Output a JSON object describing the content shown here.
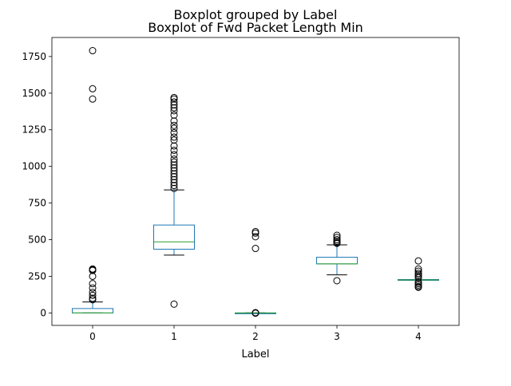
{
  "chart_data": {
    "type": "boxplot",
    "suptitle": "Boxplot grouped by Label",
    "title": "Boxplot of Fwd Packet Length Min",
    "xlabel": "Label",
    "ylabel": "",
    "categories": [
      "0",
      "1",
      "2",
      "3",
      "4"
    ],
    "ylim": [
      -85,
      1880
    ],
    "yticks": [
      0,
      250,
      500,
      750,
      1000,
      1250,
      1500,
      1750
    ],
    "grid": false,
    "colors": {
      "box": "#1f77b4",
      "median": "#2ca02c",
      "whisker": "#1f77b4",
      "cap": "#000000",
      "flier": "#000000"
    },
    "boxes": [
      {
        "label": "0",
        "q1": 0,
        "median": 0,
        "q3": 30,
        "whisker_low": 0,
        "whisker_high": 75,
        "fliers": [
          1790,
          1530,
          1460,
          300,
          295,
          290,
          250,
          200,
          170,
          140,
          120,
          100,
          90
        ]
      },
      {
        "label": "1",
        "q1": 435,
        "median": 485,
        "q3": 600,
        "whisker_low": 395,
        "whisker_high": 840,
        "fliers": [
          60,
          850,
          870,
          890,
          910,
          930,
          950,
          970,
          990,
          1010,
          1030,
          1050,
          1080,
          1110,
          1140,
          1180,
          1200,
          1230,
          1260,
          1280,
          1310,
          1350,
          1380,
          1400,
          1420,
          1440,
          1460,
          1470
        ]
      },
      {
        "label": "2",
        "q1": 0,
        "median": 0,
        "q3": 0,
        "whisker_low": 0,
        "whisker_high": 0,
        "fliers": [
          555,
          545,
          520,
          440,
          2,
          -2
        ]
      },
      {
        "label": "3",
        "q1": 335,
        "median": 335,
        "q3": 380,
        "whisker_low": 260,
        "whisker_high": 465,
        "fliers": [
          530,
          515,
          500,
          490,
          480,
          475,
          220
        ]
      },
      {
        "label": "4",
        "q1": 225,
        "median": 225,
        "q3": 228,
        "whisker_low": 225,
        "whisker_high": 228,
        "fliers": [
          355,
          300,
          285,
          270,
          260,
          250,
          240,
          210,
          200,
          190,
          180,
          175
        ]
      }
    ]
  }
}
